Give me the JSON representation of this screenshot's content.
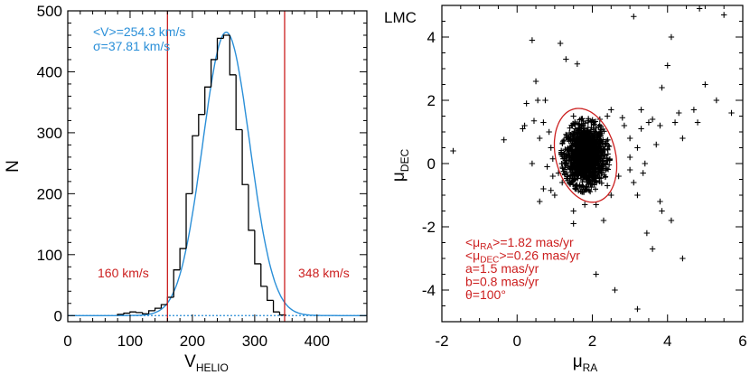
{
  "chart_data": [
    {
      "type": "histogram",
      "xlabel": "V",
      "xlabel_sub": "HELIO",
      "ylabel": "N",
      "xlim": [
        0,
        480
      ],
      "ylim": [
        -10,
        500
      ],
      "xticks": [
        0,
        100,
        200,
        300,
        400
      ],
      "yticks": [
        0,
        100,
        200,
        300,
        400,
        500
      ],
      "annotations": {
        "mean": "<V>=254.3 km/s",
        "sigma": "σ=37.81 km/s",
        "cut_low_label": "160 km/s",
        "cut_high_label": "348 km/s"
      },
      "cuts": [
        160,
        348
      ],
      "gauss_mean": 254.3,
      "gauss_sigma": 37.81,
      "gauss_peak": 465,
      "bins": {
        "edges": [
          80,
          90,
          100,
          110,
          120,
          130,
          140,
          150,
          160,
          170,
          180,
          190,
          200,
          210,
          220,
          230,
          240,
          250,
          260,
          270,
          280,
          290,
          300,
          310,
          320,
          330,
          340,
          350
        ],
        "counts": [
          2,
          4,
          6,
          5,
          3,
          8,
          12,
          18,
          30,
          75,
          110,
          200,
          295,
          330,
          375,
          420,
          455,
          460,
          395,
          305,
          215,
          140,
          85,
          48,
          25,
          6,
          1
        ]
      },
      "colors": {
        "histogram": "#000000",
        "gaussian": "#2a8fd8",
        "cuts": "#cc1f1f",
        "mean_text": "#2a8fd8"
      }
    },
    {
      "type": "scatter",
      "panel_label": "LMC",
      "xlabel": "μ",
      "xlabel_sub": "RA",
      "ylabel": "μ",
      "ylabel_sub": "DEC",
      "xlim": [
        -2,
        6
      ],
      "ylim": [
        -5,
        5
      ],
      "xticks": [
        -2,
        0,
        2,
        4,
        6
      ],
      "yticks": [
        -4,
        -2,
        0,
        2,
        4
      ],
      "ellipse": {
        "center": [
          1.82,
          0.26
        ],
        "a": 1.5,
        "b": 0.8,
        "theta_deg": 100
      },
      "cluster": {
        "center": [
          1.82,
          0.26
        ],
        "sd_x": 0.25,
        "sd_y": 0.45,
        "n": 1400
      },
      "outliers": [
        [
          -1.7,
          0.4
        ],
        [
          -0.35,
          0.75
        ],
        [
          0.4,
          3.9
        ],
        [
          0.5,
          2.6
        ],
        [
          1.15,
          3.8
        ],
        [
          1.3,
          3.3
        ],
        [
          1.5,
          1.5
        ],
        [
          1.6,
          3.15
        ],
        [
          0.25,
          1.9
        ],
        [
          0.2,
          1.2
        ],
        [
          0.45,
          1.35
        ],
        [
          0.15,
          1.1
        ],
        [
          0.75,
          2.0
        ],
        [
          0.7,
          1.3
        ],
        [
          0.85,
          1.0
        ],
        [
          0.9,
          0.5
        ],
        [
          0.8,
          -0.1
        ],
        [
          0.95,
          -0.4
        ],
        [
          0.6,
          0.8
        ],
        [
          1.1,
          -0.3
        ],
        [
          0.95,
          0.15
        ],
        [
          1.0,
          -1.0
        ],
        [
          0.6,
          -1.2
        ],
        [
          0.7,
          -0.8
        ],
        [
          1.5,
          -1.5
        ],
        [
          1.8,
          -1.3
        ],
        [
          1.5,
          -1.9
        ],
        [
          2.1,
          -1.3
        ],
        [
          2.1,
          -3.5
        ],
        [
          2.3,
          -1.8
        ],
        [
          2.7,
          -0.4
        ],
        [
          3.0,
          -0.2
        ],
        [
          3.2,
          -1.0
        ],
        [
          2.85,
          1.2
        ],
        [
          3.3,
          1.7
        ],
        [
          3.0,
          0.8
        ],
        [
          2.5,
          1.7
        ],
        [
          2.8,
          1.45
        ],
        [
          3.3,
          1.1
        ],
        [
          3.5,
          1.3
        ],
        [
          3.6,
          1.4
        ],
        [
          3.2,
          0.5
        ],
        [
          3.8,
          1.2
        ],
        [
          2.2,
          1.4
        ],
        [
          2.4,
          1.5
        ],
        [
          3.0,
          0.2
        ],
        [
          3.4,
          0.0
        ],
        [
          3.1,
          -0.6
        ],
        [
          2.6,
          -4.0
        ],
        [
          3.45,
          -2.2
        ],
        [
          3.6,
          -2.7
        ],
        [
          4.1,
          -1.8
        ],
        [
          4.4,
          -3.0
        ],
        [
          3.8,
          -1.2
        ],
        [
          3.85,
          -1.5
        ],
        [
          3.2,
          -4.6
        ],
        [
          4.0,
          3.1
        ],
        [
          4.7,
          1.7
        ],
        [
          4.1,
          4.0
        ],
        [
          4.8,
          1.3
        ],
        [
          5.0,
          2.5
        ],
        [
          5.3,
          2.0
        ],
        [
          5.7,
          1.6
        ],
        [
          4.85,
          4.9
        ],
        [
          5.5,
          4.7
        ],
        [
          3.1,
          4.65
        ],
        [
          4.3,
          1.6
        ],
        [
          3.7,
          0.6
        ],
        [
          0.4,
          0.0
        ],
        [
          0.55,
          2.0
        ],
        [
          1.2,
          -0.6
        ],
        [
          2.4,
          -0.7
        ],
        [
          2.5,
          -1.0
        ],
        [
          4.4,
          0.8
        ],
        [
          4.2,
          1.3
        ],
        [
          3.85,
          2.4
        ],
        [
          0.9,
          -0.85
        ],
        [
          3.35,
          -0.3
        ]
      ],
      "annotations": {
        "mu_ra": {
          "pre": "<μ",
          "sub": "RA",
          "post": ">=1.82 mas/yr"
        },
        "mu_dec": {
          "pre": "<μ",
          "sub": "DEC",
          "post": ">=0.26 mas/yr"
        },
        "a": "a=1.5 mas/yr",
        "b": "b=0.8 mas/yr",
        "theta": "θ=100°"
      },
      "colors": {
        "points": "#000000",
        "ellipse": "#cc1f1f",
        "text": "#cc1f1f"
      }
    }
  ]
}
